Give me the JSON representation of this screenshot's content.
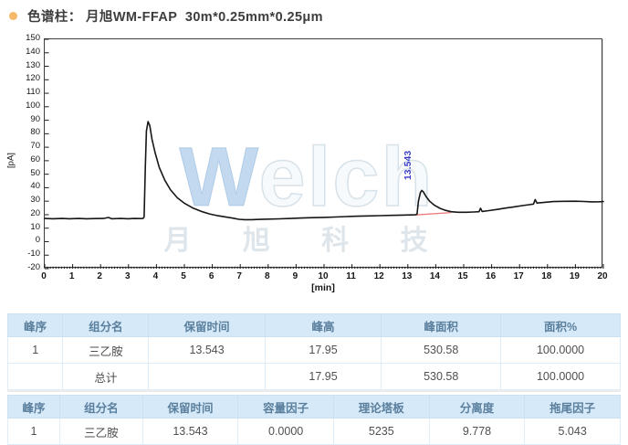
{
  "header": {
    "bullet_color": "#f5b969",
    "title": "色谱柱： 月旭WM-FFAP  30m*0.25mm*0.25μm"
  },
  "chart": {
    "ylabel": "[pA]",
    "xlabel": "[min]",
    "peak_label": "13.543",
    "watermark": {
      "main_initial": "W",
      "main_rest": "elch",
      "sub": "月 旭 科 技"
    },
    "colors": {
      "trace": "#161616",
      "integration_baseline": "#ee7a7a",
      "peak_label": "#3a3ac8",
      "tick": "#1a1a1a"
    }
  },
  "chart_data": {
    "type": "line",
    "title": "",
    "xlabel": "[min]",
    "ylabel": "[pA]",
    "xlim": [
      0,
      20
    ],
    "ylim": [
      -20,
      150
    ],
    "x_ticks": [
      0,
      1,
      2,
      3,
      4,
      5,
      6,
      7,
      8,
      9,
      10,
      11,
      12,
      13,
      14,
      15,
      16,
      17,
      18,
      19,
      20
    ],
    "y_ticks": [
      150,
      140,
      130,
      120,
      110,
      100,
      90,
      80,
      70,
      60,
      50,
      40,
      30,
      20,
      10,
      0,
      -10,
      -20
    ],
    "grid": false,
    "legend": false,
    "peaks": [
      {
        "retention_min": 3.7,
        "apex_pA": 89,
        "labeled": false
      },
      {
        "retention_min": 13.543,
        "apex_pA": 38,
        "labeled": true
      }
    ],
    "annotations": [
      {
        "text": "13.543",
        "x_min": 13.45,
        "y_pA": 48,
        "rotation": -90,
        "color": "#3a3ac8"
      }
    ],
    "series": [
      {
        "name": "fid-signal",
        "points": [
          [
            0,
            17.2
          ],
          [
            0.3,
            17.0
          ],
          [
            0.6,
            17.2
          ],
          [
            0.9,
            17.0
          ],
          [
            1.2,
            17.2
          ],
          [
            1.5,
            17.0
          ],
          [
            1.8,
            17.1
          ],
          [
            2.1,
            17.2
          ],
          [
            2.28,
            17.9
          ],
          [
            2.4,
            17.0
          ],
          [
            2.7,
            17.2
          ],
          [
            3.0,
            17.0
          ],
          [
            3.2,
            17.2
          ],
          [
            3.4,
            17.1
          ],
          [
            3.52,
            17.2
          ],
          [
            3.56,
            18.5
          ],
          [
            3.6,
            55
          ],
          [
            3.64,
            82
          ],
          [
            3.7,
            89
          ],
          [
            3.76,
            86
          ],
          [
            3.84,
            76
          ],
          [
            3.95,
            66
          ],
          [
            4.1,
            55
          ],
          [
            4.3,
            45.5
          ],
          [
            4.5,
            38.5
          ],
          [
            4.75,
            32.5
          ],
          [
            5.0,
            28.5
          ],
          [
            5.3,
            25
          ],
          [
            5.6,
            22.5
          ],
          [
            5.9,
            20.6
          ],
          [
            6.2,
            19.2
          ],
          [
            6.5,
            18.2
          ],
          [
            6.75,
            17.4
          ],
          [
            6.95,
            16.6
          ],
          [
            7.15,
            16.3
          ],
          [
            7.4,
            16.3
          ],
          [
            7.7,
            16.5
          ],
          [
            8.0,
            16.7
          ],
          [
            8.4,
            16.9
          ],
          [
            8.8,
            17.2
          ],
          [
            9.2,
            17.5
          ],
          [
            9.6,
            17.8
          ],
          [
            10.0,
            18.0
          ],
          [
            10.4,
            18.3
          ],
          [
            10.8,
            18.6
          ],
          [
            11.2,
            18.9
          ],
          [
            11.6,
            19.1
          ],
          [
            12.0,
            19.3
          ],
          [
            12.4,
            19.5
          ],
          [
            12.8,
            19.7
          ],
          [
            13.1,
            19.8
          ],
          [
            13.28,
            19.9
          ],
          [
            13.33,
            20.5
          ],
          [
            13.38,
            30
          ],
          [
            13.45,
            36.5
          ],
          [
            13.5,
            38
          ],
          [
            13.56,
            36.8
          ],
          [
            13.65,
            33.5
          ],
          [
            13.78,
            30
          ],
          [
            13.95,
            27
          ],
          [
            14.15,
            24.7
          ],
          [
            14.35,
            23.2
          ],
          [
            14.55,
            22.2
          ],
          [
            14.8,
            21.8
          ],
          [
            15.1,
            21.8
          ],
          [
            15.35,
            22.0
          ],
          [
            15.55,
            22.2
          ],
          [
            15.6,
            24.8
          ],
          [
            15.66,
            22.4
          ],
          [
            15.9,
            23.0
          ],
          [
            16.2,
            23.9
          ],
          [
            16.5,
            24.9
          ],
          [
            16.8,
            25.8
          ],
          [
            17.1,
            26.7
          ],
          [
            17.35,
            27.4
          ],
          [
            17.5,
            27.9
          ],
          [
            17.56,
            31.2
          ],
          [
            17.62,
            28.6
          ],
          [
            17.9,
            29.2
          ],
          [
            18.2,
            29.7
          ],
          [
            18.6,
            29.9
          ],
          [
            19.0,
            30.0
          ],
          [
            19.3,
            29.8
          ],
          [
            19.6,
            29.5
          ],
          [
            19.85,
            29.6
          ],
          [
            20,
            29.7
          ]
        ]
      },
      {
        "name": "integration-baseline",
        "points": [
          [
            13.3,
            19.8
          ],
          [
            14.55,
            21.6
          ]
        ]
      }
    ]
  },
  "tables": {
    "results": {
      "headers": [
        "峰序",
        "组分名",
        "保留时间",
        "峰高",
        "峰面积",
        "面积%"
      ],
      "col_widths": [
        "9%",
        "14%",
        "19%",
        "19%",
        "19.5%",
        "19.5%"
      ],
      "rows": [
        [
          "1",
          "三乙胺",
          "13.543",
          "17.95",
          "530.58",
          "100.0000"
        ],
        [
          "",
          "总计",
          "",
          "17.95",
          "530.58",
          "100.0000"
        ]
      ]
    },
    "performance": {
      "headers": [
        "峰序",
        "组分名",
        "保留时间",
        "容量因子",
        "理论塔板",
        "分离度",
        "拖尾因子"
      ],
      "col_widths": [
        "8.5%",
        "13.5%",
        "15.6%",
        "15.6%",
        "15.6%",
        "15.6%",
        "15.6%"
      ],
      "rows": [
        [
          "1",
          "三乙胺",
          "13.543",
          "0.0000",
          "5235",
          "9.778",
          "5.043"
        ]
      ]
    }
  }
}
